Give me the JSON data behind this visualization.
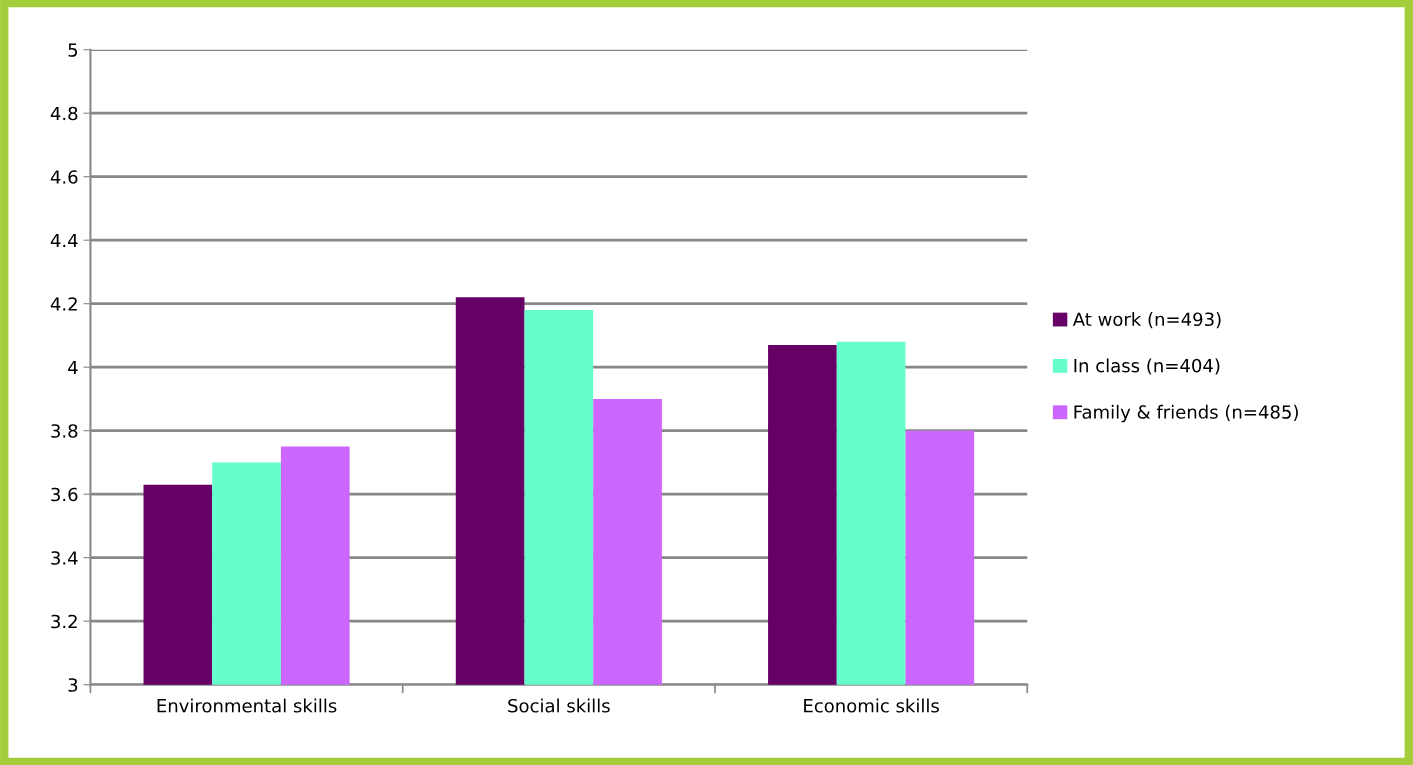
{
  "chart_data": {
    "type": "bar",
    "categories": [
      "Environmental skills",
      "Social skills",
      "Economic skills"
    ],
    "series": [
      {
        "name": "At work (n=493)",
        "color": "#660066",
        "values": [
          3.63,
          4.22,
          4.07
        ]
      },
      {
        "name": "In class (n=404)",
        "color": "#66ffcc",
        "values": [
          3.7,
          4.18,
          4.08
        ]
      },
      {
        "name": "Family & friends (n=485)",
        "color": "#cc66ff",
        "values": [
          3.75,
          3.9,
          3.8
        ]
      }
    ],
    "ylim": [
      3,
      5
    ],
    "yticks": [
      3,
      3.2,
      3.4,
      3.6,
      3.8,
      4,
      4.2,
      4.4,
      4.6,
      4.8,
      5
    ],
    "grid": "y",
    "legend": "right"
  }
}
